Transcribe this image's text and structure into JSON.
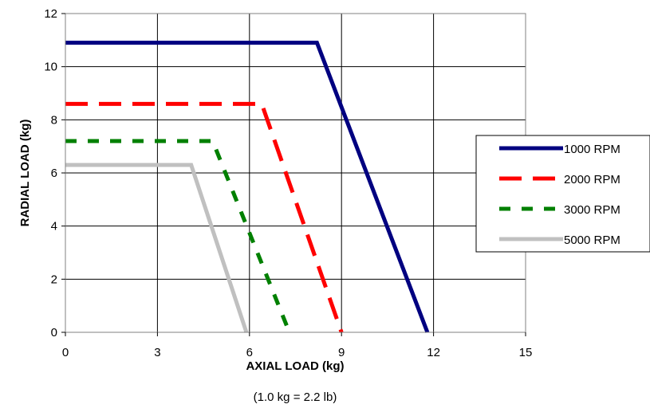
{
  "chart_data": {
    "type": "line",
    "title": "",
    "xlabel": "AXIAL LOAD (kg)",
    "xnote": "(1.0 kg = 2.2 lb)",
    "ylabel": "RADIAL LOAD (kg)",
    "xlim": [
      0,
      15
    ],
    "ylim": [
      0,
      12
    ],
    "xticks": [
      0,
      3,
      6,
      9,
      12,
      15
    ],
    "yticks": [
      0,
      2,
      4,
      6,
      8,
      10,
      12
    ],
    "grid": true,
    "legend_position": "right",
    "series": [
      {
        "name": "1000 RPM",
        "color": "#000080",
        "style": "solid",
        "x": [
          0,
          8.2,
          11.8
        ],
        "y": [
          10.9,
          10.9,
          0
        ]
      },
      {
        "name": "2000 RPM",
        "color": "#ff0000",
        "style": "dashed",
        "x": [
          0,
          6.4,
          9.0
        ],
        "y": [
          8.6,
          8.6,
          0
        ]
      },
      {
        "name": "3000 RPM",
        "color": "#008000",
        "style": "dashed-short",
        "x": [
          0,
          4.8,
          7.3
        ],
        "y": [
          7.2,
          7.2,
          0
        ]
      },
      {
        "name": "5000 RPM",
        "color": "#c0c0c0",
        "style": "solid",
        "x": [
          0,
          4.1,
          5.9
        ],
        "y": [
          6.3,
          6.3,
          0
        ]
      }
    ]
  }
}
